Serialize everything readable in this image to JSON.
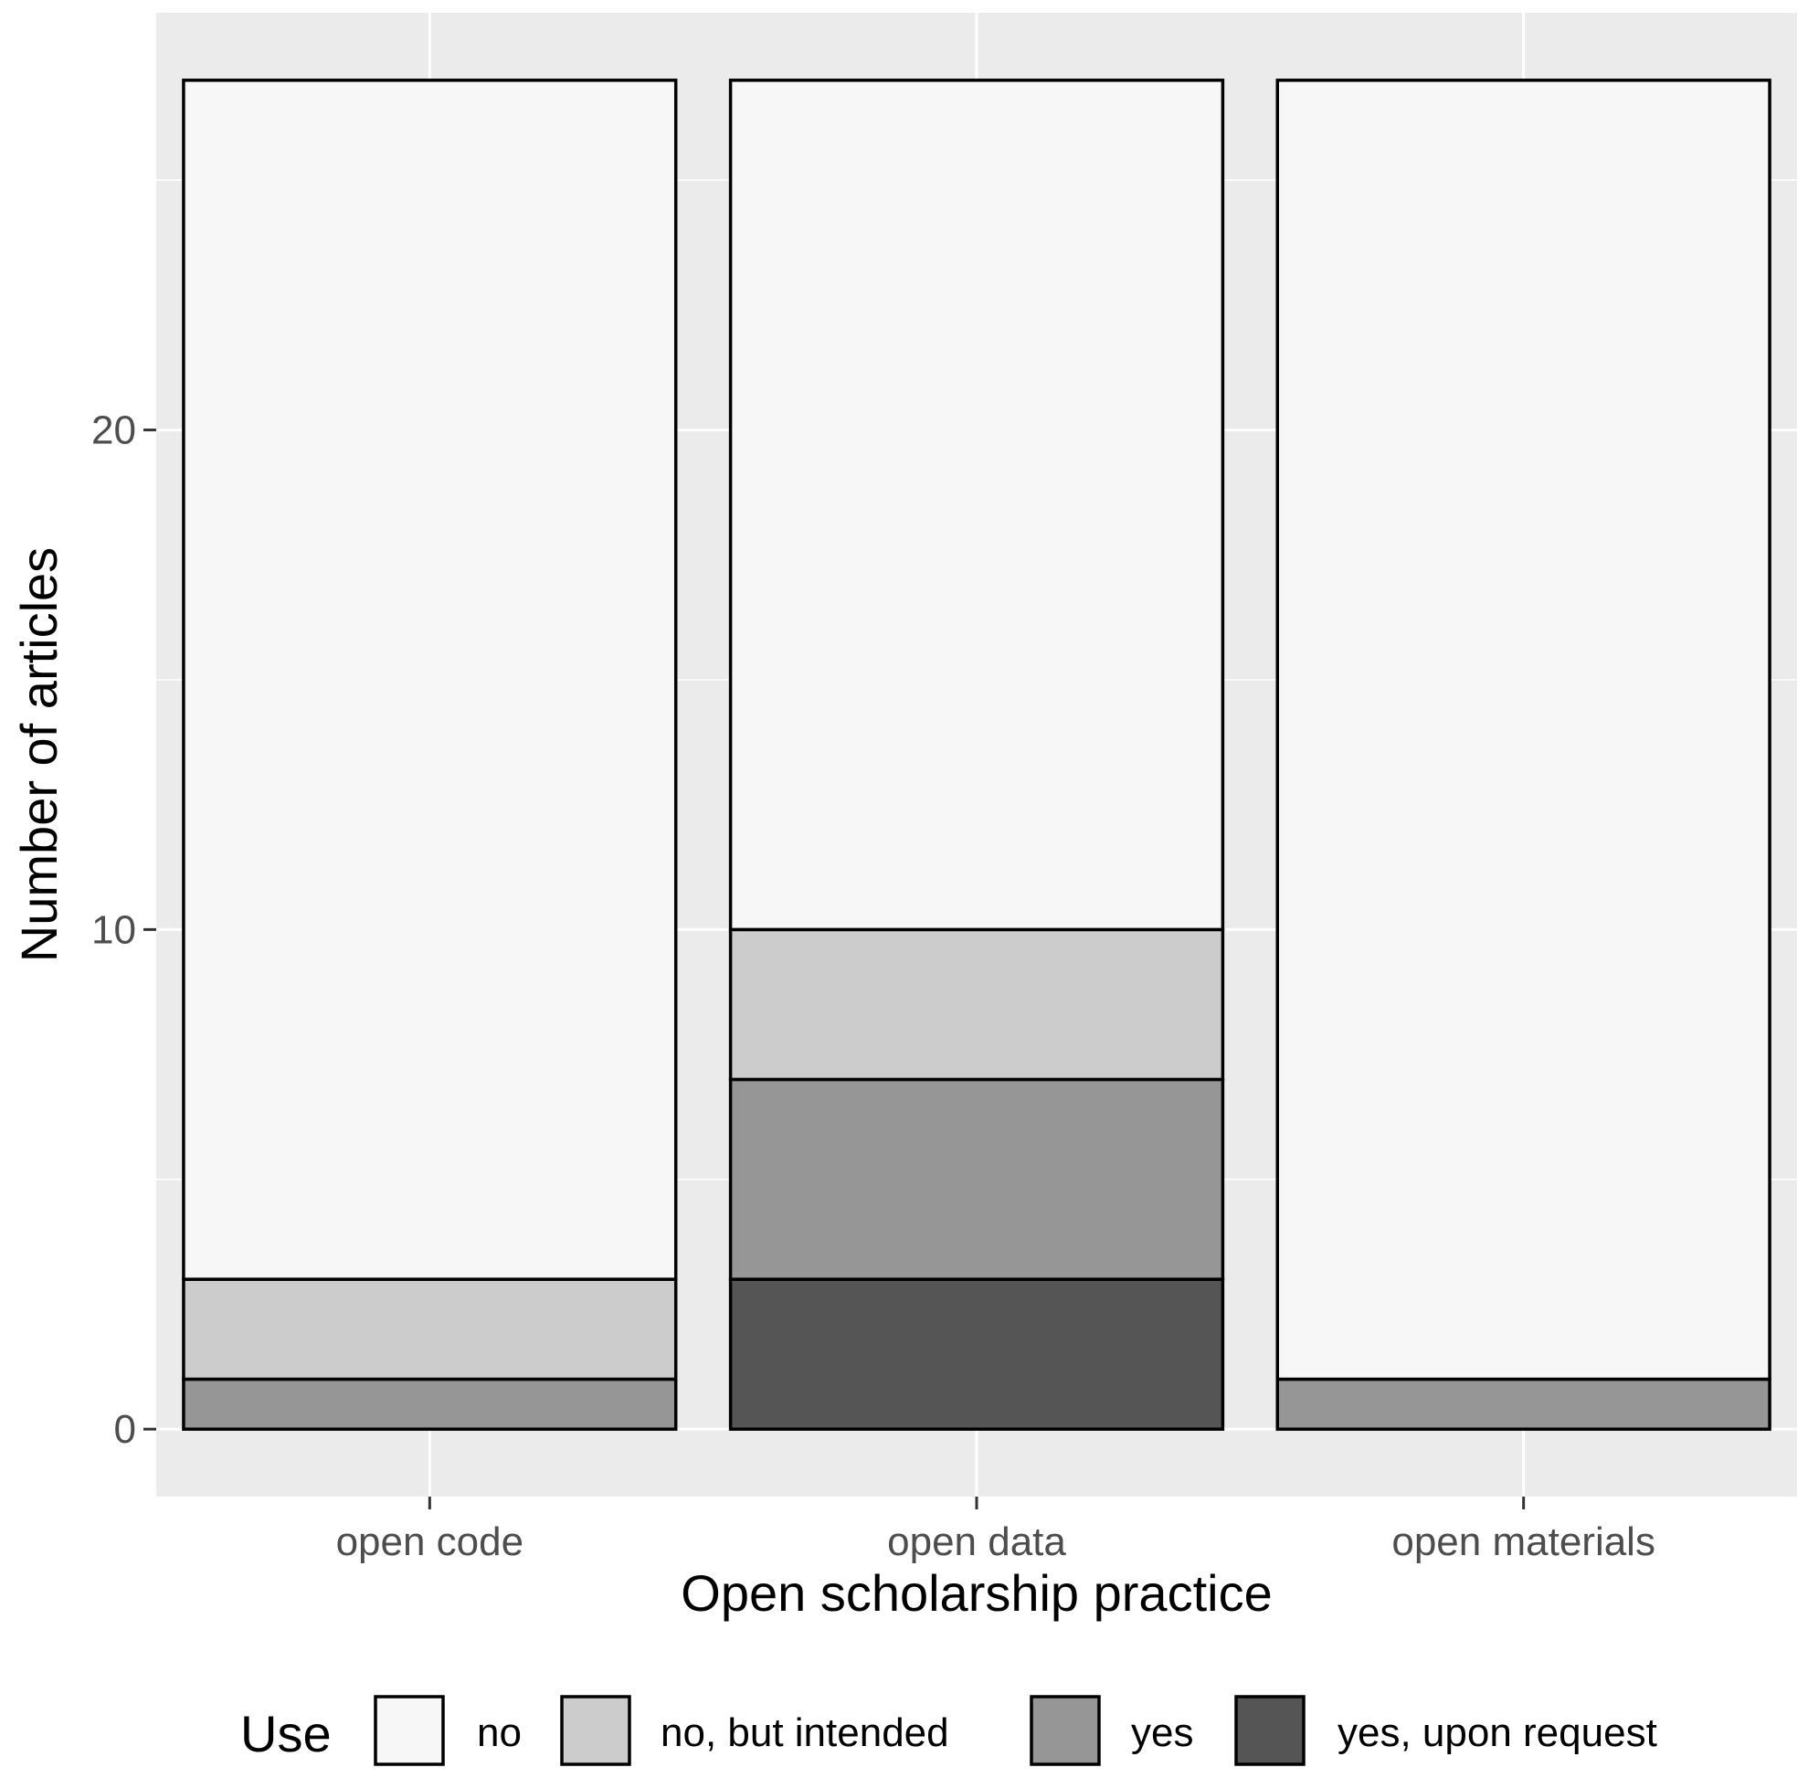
{
  "chart_data": {
    "type": "bar",
    "stacked": true,
    "categories": [
      "open code",
      "open data",
      "open materials"
    ],
    "series": [
      {
        "name": "yes, upon request",
        "color": "#555555",
        "values": [
          0,
          3,
          0
        ]
      },
      {
        "name": "yes",
        "color": "#969696",
        "values": [
          1,
          4,
          1
        ]
      },
      {
        "name": "no, but intended",
        "color": "#cccccc",
        "values": [
          2,
          3,
          0
        ]
      },
      {
        "name": "no",
        "color": "#f7f7f7",
        "values": [
          24,
          17,
          26
        ]
      }
    ],
    "xlabel": "Open scholarship practice",
    "ylabel": "Number of articles",
    "yticks": [
      0,
      10,
      20
    ],
    "ylim": [
      -1.35,
      28.35
    ],
    "grid": true,
    "panel_background": "#ebebeb",
    "legend": {
      "title": "Use",
      "position": "bottom",
      "entries": [
        "no",
        "no, but intended",
        "yes",
        "yes, upon request"
      ]
    }
  }
}
